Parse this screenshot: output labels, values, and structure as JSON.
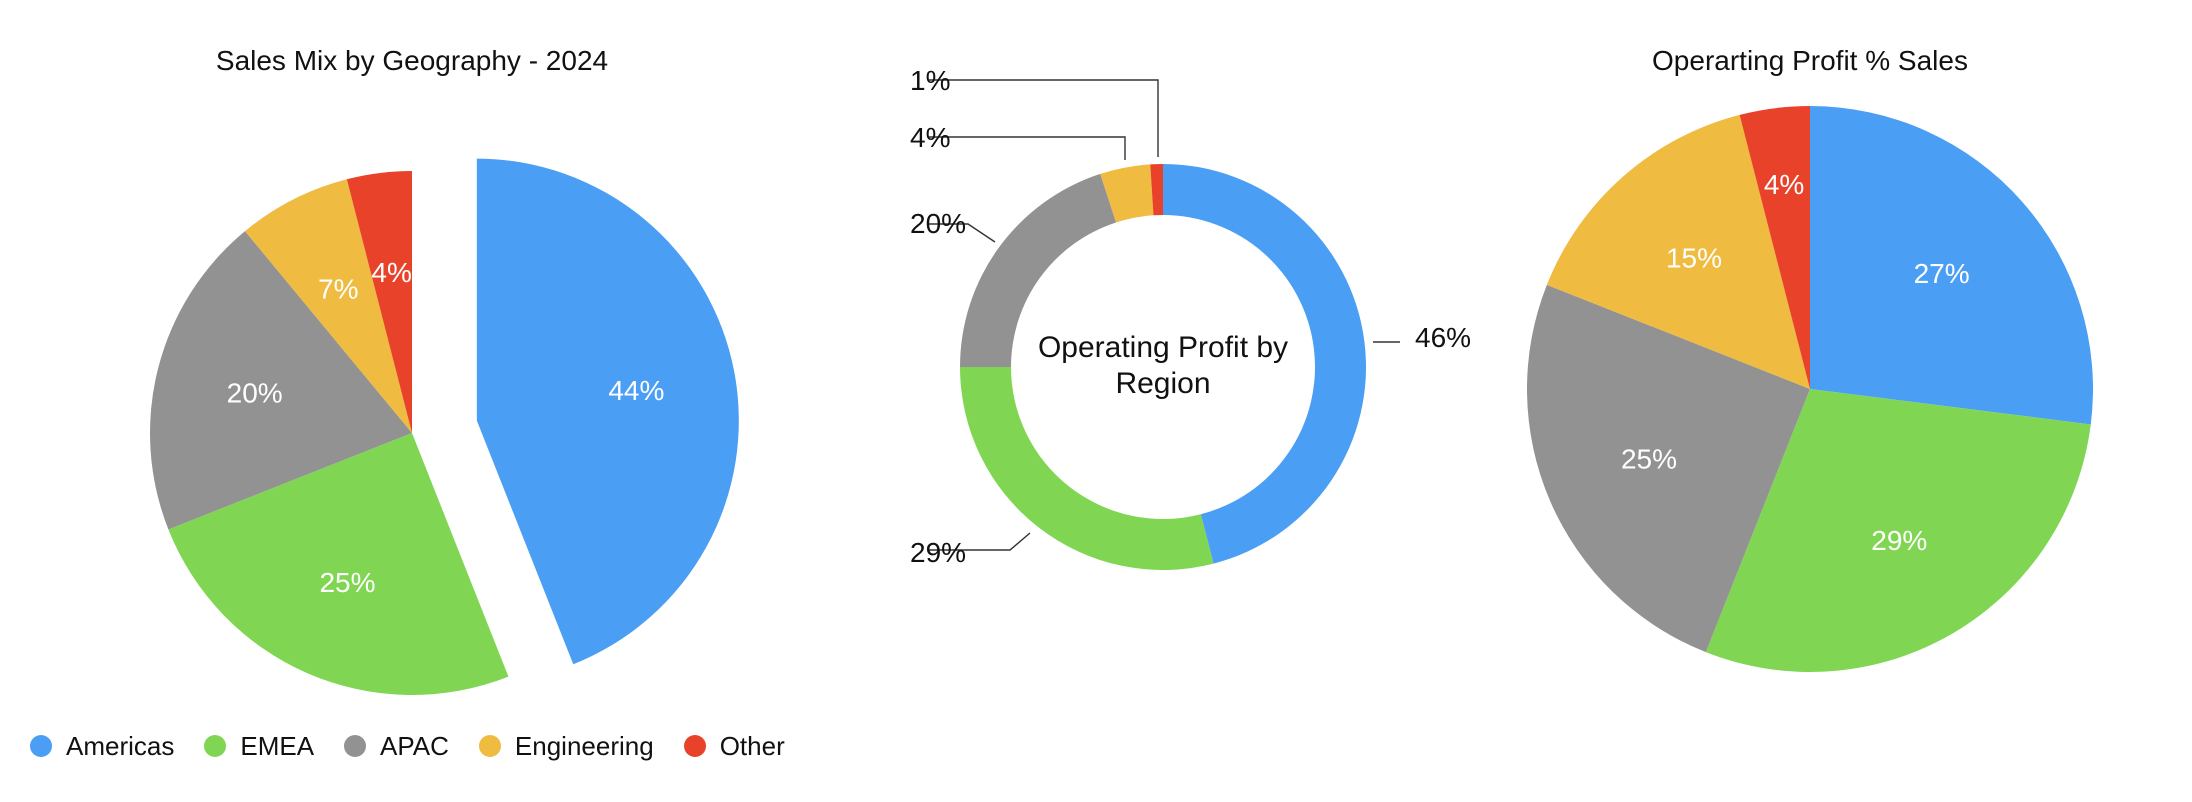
{
  "legend": {
    "items": [
      {
        "label": "Americas",
        "color": "#4A9FF5"
      },
      {
        "label": "EMEA",
        "color": "#80D653"
      },
      {
        "label": "APAC",
        "color": "#929292"
      },
      {
        "label": "Engineering",
        "color": "#EFBB40"
      },
      {
        "label": "Other",
        "color": "#E8432A"
      }
    ]
  },
  "chart_data": [
    {
      "type": "pie",
      "title": "Sales Mix by Geography - 2024",
      "categories": [
        "Americas",
        "EMEA",
        "APAC",
        "Engineering",
        "Other"
      ],
      "values": [
        44,
        25,
        20,
        7,
        4
      ],
      "labels": [
        "44%",
        "25%",
        "20%",
        "7%",
        "4%"
      ],
      "exploded": "Americas",
      "legend": "bottom-left"
    },
    {
      "type": "pie",
      "style": "donut",
      "title": "",
      "center_label": [
        "Operating Profit by",
        "Region"
      ],
      "categories": [
        "Americas",
        "EMEA",
        "APAC",
        "Engineering",
        "Other"
      ],
      "values": [
        46,
        29,
        20,
        4,
        1
      ],
      "labels": [
        "46%",
        "29%",
        "20%",
        "4%",
        "1%"
      ]
    },
    {
      "type": "pie",
      "title": "Operarting Profit % Sales",
      "categories": [
        "Americas",
        "EMEA",
        "APAC",
        "Engineering",
        "Other"
      ],
      "values": [
        27,
        29,
        25,
        15,
        4
      ],
      "labels": [
        "27%",
        "29%",
        "25%",
        "15%",
        "4%"
      ]
    }
  ]
}
